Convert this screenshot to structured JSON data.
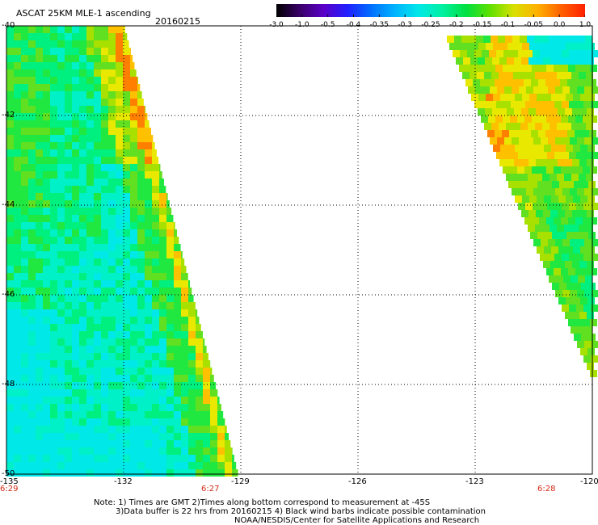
{
  "header": {
    "title": "ASCAT 25KM MLE-1 ascending",
    "date": "20160215"
  },
  "colorbar": {
    "labels": [
      "-3.0",
      "-1.0",
      "-0.5",
      "-0.4",
      "-0.35",
      "-0.3",
      "-0.25",
      "-0.2",
      "-0.15",
      "-0.1",
      "-0.05",
      "0.0",
      "1.0"
    ],
    "colors": [
      "#000000",
      "#3a006a",
      "#5a00c8",
      "#2020ff",
      "#0070ff",
      "#00b4ff",
      "#00e8e8",
      "#00f0a0",
      "#00e040",
      "#60e000",
      "#d8e000",
      "#ffb000",
      "#ff6000",
      "#ff2000"
    ]
  },
  "axes": {
    "lat_labels": [
      "-40",
      "-42",
      "-44",
      "-46",
      "-48",
      "-50"
    ],
    "lon_labels": [
      "-135",
      "-132",
      "-129",
      "-126",
      "-123",
      "-120"
    ],
    "time_labels": [
      "6:29",
      "6:27",
      "6:28"
    ]
  },
  "notes": {
    "line1": "Note: 1) Times are GMT 2)Times along bottom correspond to measurement at -45S",
    "line2": "3)Data buffer is 22 hrs from 20160215 4) Black wind barbs indicate possible contamination",
    "line3": "NOAA/NESDIS/Center for Satellite Applications and Research"
  },
  "map": {
    "lon_range": [
      -135,
      -120
    ],
    "lat_range": [
      -50,
      -40
    ],
    "swaths": [
      {
        "name": "left-swath",
        "west_lon": -135,
        "east_edge_lat": [
          -40,
          -50
        ],
        "east_edge_lon": [
          -132.0,
          -129.0
        ]
      },
      {
        "name": "right-swath",
        "west_edge_lat": [
          -40.2,
          -48
        ],
        "west_edge_lon": [
          -123.6,
          -120.3
        ],
        "east_lon": -120
      }
    ]
  }
}
